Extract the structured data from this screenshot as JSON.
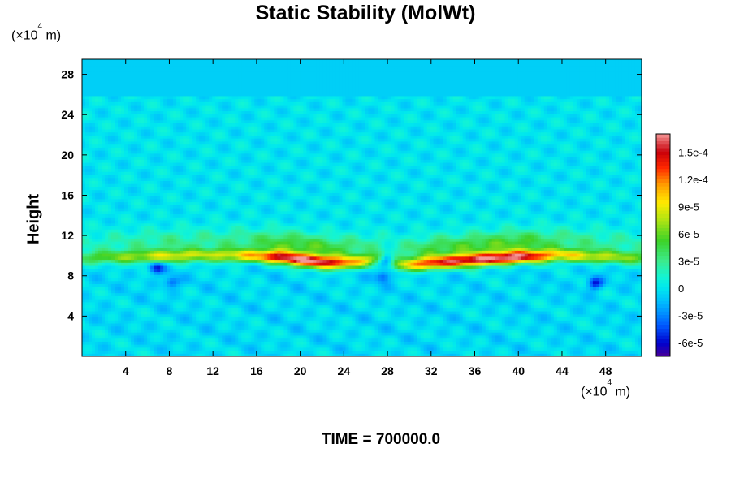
{
  "chart_data": {
    "type": "heatmap",
    "title": "Static Stability (MolWt)",
    "ylabel": "Height",
    "y_unit": "(×10⁴ m)",
    "x_unit": "(×10⁴ m)",
    "xlim": [
      0,
      51.3
    ],
    "ylim": [
      0,
      29.5
    ],
    "x_ticks": [
      4,
      8,
      12,
      16,
      20,
      24,
      28,
      32,
      36,
      40,
      44,
      48
    ],
    "y_ticks": [
      4,
      8,
      12,
      16,
      20,
      24,
      28
    ],
    "colorbar": {
      "min": -7.5e-05,
      "max": 0.00017,
      "tick_values": [
        -6e-05,
        -3e-05,
        0,
        3e-05,
        6e-05,
        9e-05,
        0.00012,
        0.00015
      ],
      "tick_labels": [
        "-6e-5",
        "-3e-5",
        "0",
        "3e-5",
        "6e-5",
        "9e-5",
        "1.2e-4",
        "1.5e-4"
      ]
    },
    "field": {
      "background_value": 0,
      "upper_layer_above_y": 25.8,
      "upper_layer_value": -8e-06,
      "stable_band": {
        "center_y": [
          [
            0,
            9.8
          ],
          [
            4,
            9.9
          ],
          [
            8,
            10.0
          ],
          [
            12,
            10.1
          ],
          [
            16,
            10.0
          ],
          [
            18,
            9.9
          ],
          [
            20,
            9.6
          ],
          [
            22,
            9.4
          ],
          [
            24,
            9.3
          ],
          [
            26,
            9.5
          ],
          [
            27.5,
            9.8
          ],
          [
            29,
            9.1
          ],
          [
            32,
            9.3
          ],
          [
            36,
            9.6
          ],
          [
            40,
            9.9
          ],
          [
            44,
            10.1
          ],
          [
            48,
            9.9
          ],
          [
            51.3,
            9.8
          ]
        ],
        "peak_value": [
          [
            0,
            4e-05
          ],
          [
            4,
            6e-05
          ],
          [
            8,
            8e-05
          ],
          [
            12,
            7e-05
          ],
          [
            16,
            0.0001
          ],
          [
            18,
            0.000145
          ],
          [
            20,
            0.000155
          ],
          [
            22,
            0.00015
          ],
          [
            24,
            0.00012
          ],
          [
            26,
            8e-05
          ],
          [
            28,
            4e-05
          ],
          [
            30,
            9e-05
          ],
          [
            32,
            0.00013
          ],
          [
            36,
            0.00015
          ],
          [
            40,
            0.000155
          ],
          [
            42,
            0.00012
          ],
          [
            44,
            9e-05
          ],
          [
            48,
            7e-05
          ],
          [
            51.3,
            5e-05
          ]
        ]
      },
      "negative_spots": [
        {
          "x": 6.8,
          "y": 8.8,
          "value": -5e-05
        },
        {
          "x": 8.2,
          "y": 7.4,
          "value": -4e-05
        },
        {
          "x": 28.0,
          "y": 9.6,
          "value": -6.5e-05
        },
        {
          "x": 27.6,
          "y": 8.0,
          "value": -4e-05
        },
        {
          "x": 47.0,
          "y": 7.3,
          "value": -5.5e-05
        }
      ]
    }
  },
  "time_label": "TIME = 700000.0"
}
